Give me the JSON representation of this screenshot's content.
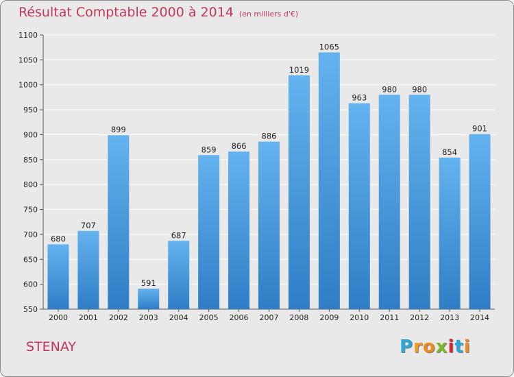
{
  "title": "Résultat Comptable 2000 à 2014",
  "unit": "(en milliers d'€)",
  "city": "STENAY",
  "logo": {
    "letters": [
      "P",
      "r",
      "o",
      "x",
      "i",
      "t",
      "i"
    ],
    "colors": [
      "#2aa6d9",
      "#f39b1e",
      "#f08a1c",
      "#7ab929",
      "#d2222d",
      "#2aa6d9",
      "#f08a1c"
    ]
  },
  "colors": {
    "bar_top": "#64b2ee",
    "bar_bottom": "#2f7ec6",
    "grid": "#ffffff",
    "background": "#e9e9e9",
    "title": "#c4365a"
  },
  "chart_data": {
    "type": "bar",
    "categories": [
      "2000",
      "2001",
      "2002",
      "2003",
      "2004",
      "2005",
      "2006",
      "2007",
      "2008",
      "2009",
      "2010",
      "2011",
      "2012",
      "2013",
      "2014"
    ],
    "values": [
      680,
      707,
      899,
      591,
      687,
      859,
      866,
      886,
      1019,
      1065,
      963,
      980,
      980,
      854,
      901
    ],
    "title": "Résultat Comptable 2000 à 2014",
    "ylim": [
      550,
      1100
    ],
    "yticks": [
      550,
      600,
      650,
      700,
      750,
      800,
      850,
      900,
      950,
      1000,
      1050,
      1100
    ],
    "grid": true,
    "data_labels": true
  }
}
